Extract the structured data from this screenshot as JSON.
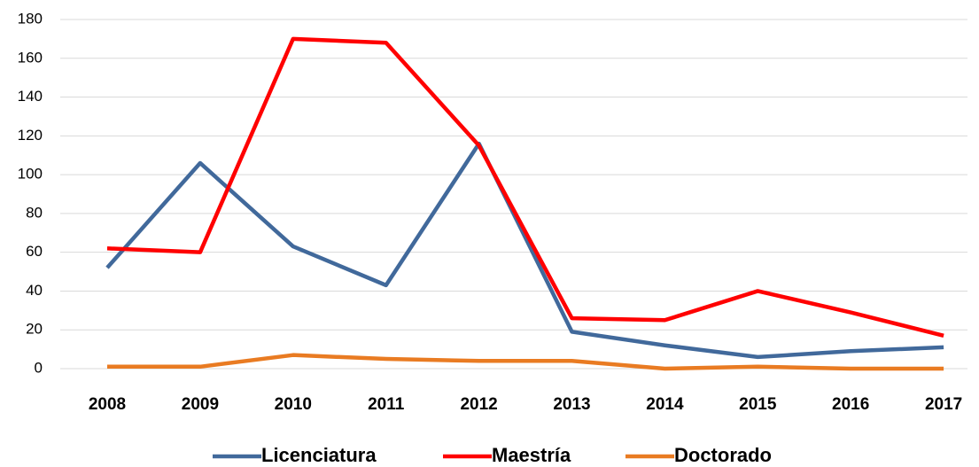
{
  "chart_data": {
    "type": "line",
    "categories": [
      "2008",
      "2009",
      "2010",
      "2011",
      "2012",
      "2013",
      "2014",
      "2015",
      "2016",
      "2017"
    ],
    "series": [
      {
        "name": "Licenciatura",
        "color": "#41699b",
        "values": [
          52,
          106,
          63,
          43,
          116,
          19,
          12,
          6,
          9,
          11
        ]
      },
      {
        "name": "Maestría",
        "color": "#ff0000",
        "values": [
          62,
          60,
          170,
          168,
          115,
          26,
          25,
          40,
          29,
          17
        ]
      },
      {
        "name": "Doctorado",
        "color": "#e97b22",
        "values": [
          1,
          1,
          7,
          5,
          4,
          4,
          0,
          1,
          0,
          0
        ]
      }
    ],
    "ylim": [
      0,
      180
    ],
    "yticks": [
      0,
      20,
      40,
      60,
      80,
      100,
      120,
      140,
      160,
      180
    ],
    "grid": true,
    "legend": "bottom"
  }
}
